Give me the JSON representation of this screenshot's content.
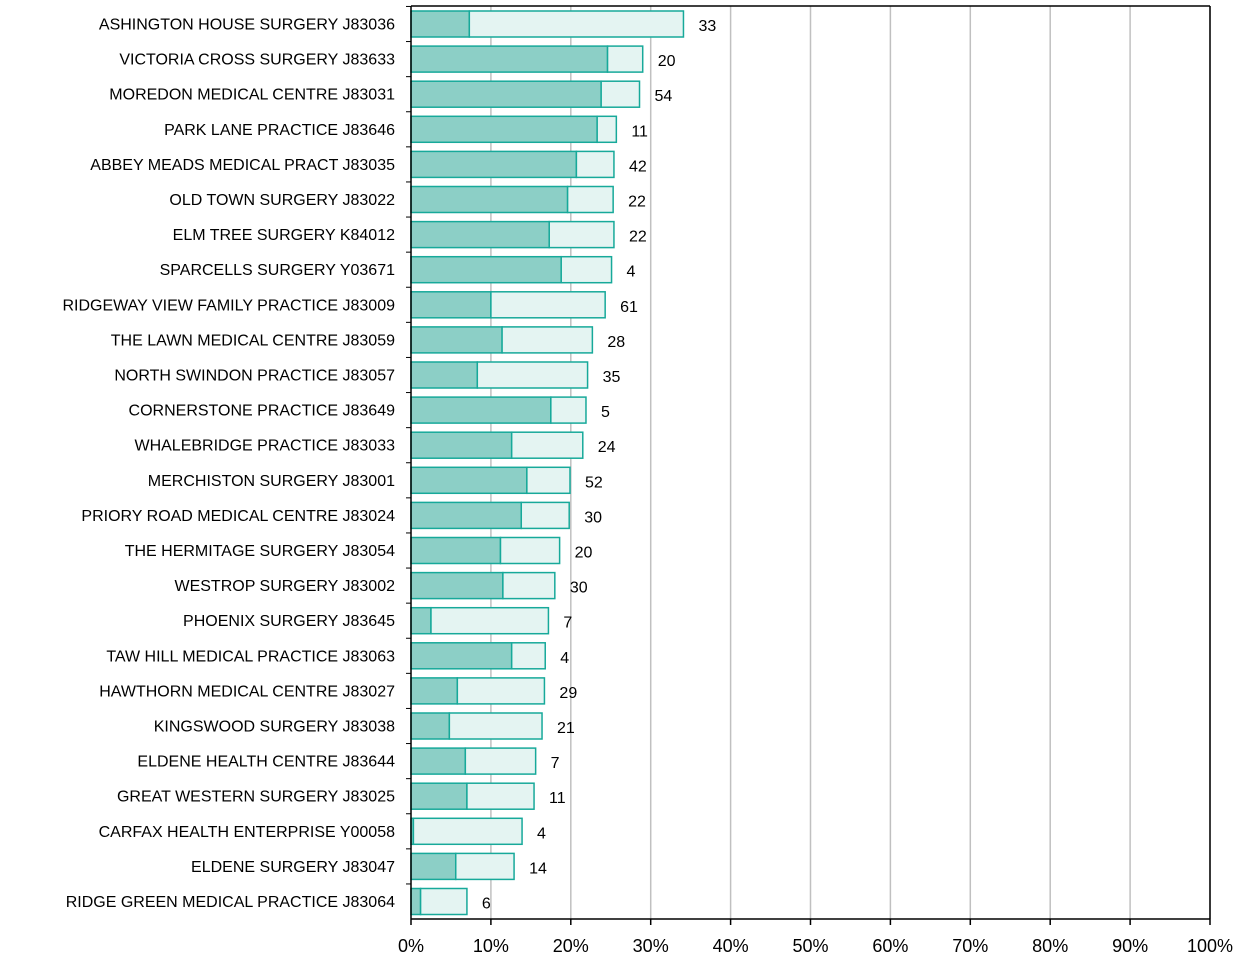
{
  "chart_data": {
    "type": "bar",
    "orientation": "horizontal",
    "stacked": true,
    "title": "",
    "xlabel": "",
    "ylabel": "",
    "xlim": [
      0,
      100
    ],
    "x_ticks": [
      "0%",
      "10%",
      "20%",
      "30%",
      "40%",
      "50%",
      "60%",
      "70%",
      "80%",
      "90%",
      "100%"
    ],
    "grid": "vertical",
    "categories": [
      "ASHINGTON HOUSE SURGERY J83036",
      "VICTORIA CROSS SURGERY J83633",
      "MOREDON MEDICAL CENTRE J83031",
      "PARK LANE PRACTICE J83646",
      "ABBEY MEADS MEDICAL PRACT J83035",
      "OLD TOWN SURGERY J83022",
      "ELM TREE SURGERY K84012",
      "SPARCELLS SURGERY Y03671",
      "RIDGEWAY VIEW FAMILY PRACTICE J83009",
      "THE LAWN MEDICAL CENTRE J83059",
      "NORTH SWINDON PRACTICE J83057",
      "CORNERSTONE PRACTICE J83649",
      "WHALEBRIDGE PRACTICE J83033",
      "MERCHISTON SURGERY J83001",
      "PRIORY ROAD MEDICAL CENTRE J83024",
      "THE HERMITAGE SURGERY J83054",
      "WESTROP SURGERY J83002",
      "PHOENIX SURGERY J83645",
      "TAW HILL MEDICAL PRACTICE J83063",
      "HAWTHORN MEDICAL CENTRE J83027",
      "KINGSWOOD SURGERY J83038",
      "ELDENE HEALTH CENTRE J83644",
      "GREAT WESTERN SURGERY J83025",
      "CARFAX HEALTH ENTERPRISE Y00058",
      "ELDENE SURGERY J83047",
      "RIDGE GREEN MEDICAL PRACTICE J83064"
    ],
    "series": [
      {
        "color": "#8ccfc6",
        "values": [
          7.3,
          24.6,
          23.8,
          23.3,
          20.7,
          19.6,
          17.3,
          18.8,
          10.0,
          11.4,
          8.3,
          17.5,
          12.6,
          14.5,
          13.8,
          11.2,
          11.5,
          2.5,
          12.6,
          5.8,
          4.8,
          6.8,
          7.0,
          0.3,
          5.6,
          1.2
        ]
      },
      {
        "color": "#e4f4f2",
        "values": [
          26.8,
          4.4,
          4.8,
          2.4,
          4.7,
          5.7,
          8.1,
          6.3,
          14.3,
          11.3,
          13.8,
          4.4,
          8.9,
          5.4,
          6.0,
          7.4,
          6.5,
          14.7,
          4.2,
          10.9,
          11.6,
          8.8,
          8.4,
          13.6,
          7.3,
          5.8
        ]
      }
    ],
    "counts": [
      "33",
      "20",
      "54",
      "11",
      "42",
      "22",
      "22",
      "4",
      "61",
      "28",
      "35",
      "5",
      "24",
      "52",
      "30",
      "20",
      "30",
      "7",
      "4",
      "29",
      "21",
      "7",
      "11",
      "4",
      "14",
      "6"
    ],
    "colors": {
      "bar_outline": "#17a99a",
      "gridline": "#c0c0c0",
      "axis": "#000000"
    }
  }
}
